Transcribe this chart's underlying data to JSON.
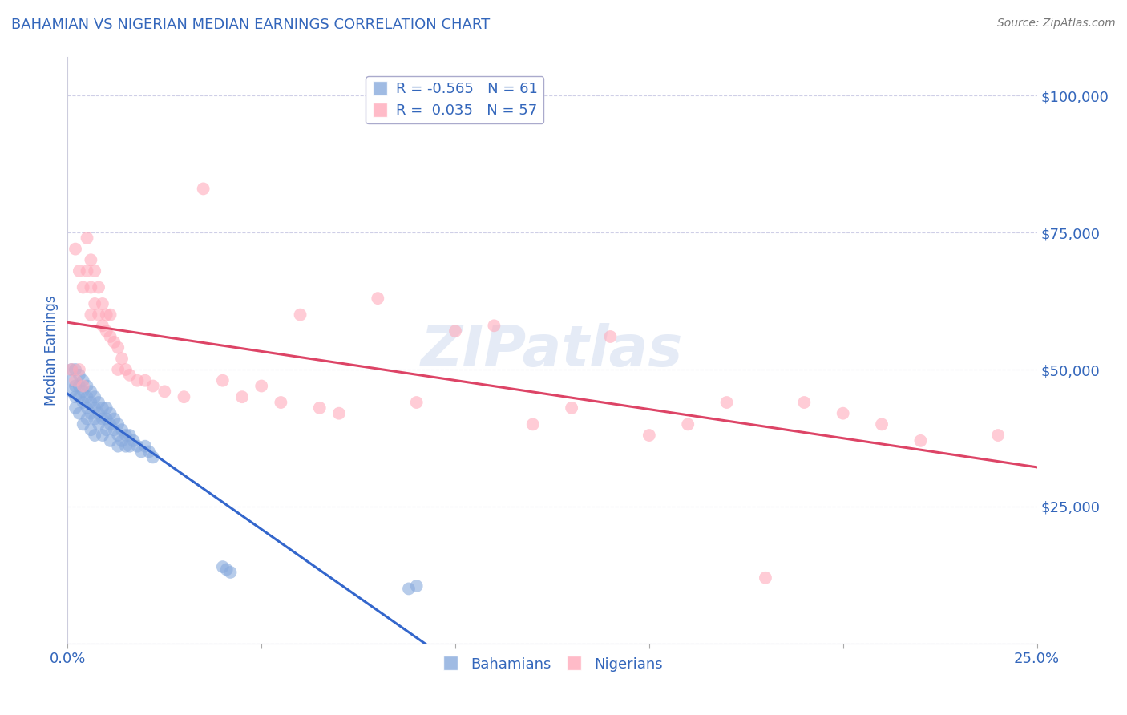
{
  "title": "BAHAMIAN VS NIGERIAN MEDIAN EARNINGS CORRELATION CHART",
  "source_text": "Source: ZipAtlas.com",
  "ylabel": "Median Earnings",
  "xmin": 0.0,
  "xmax": 0.25,
  "ymin": 0,
  "ymax": 107000,
  "yticks": [
    0,
    25000,
    50000,
    75000,
    100000
  ],
  "ytick_labels": [
    "",
    "$25,000",
    "$50,000",
    "$75,000",
    "$100,000"
  ],
  "xticks": [
    0.0,
    0.05,
    0.1,
    0.15,
    0.2,
    0.25
  ],
  "xtick_labels": [
    "0.0%",
    "",
    "",
    "",
    "",
    "25.0%"
  ],
  "legend_blue_r": "-0.565",
  "legend_blue_n": "61",
  "legend_pink_r": "0.035",
  "legend_pink_n": "57",
  "blue_color": "#88aadd",
  "pink_color": "#ffaabb",
  "blue_line_color": "#3366cc",
  "pink_line_color": "#dd4466",
  "watermark": "ZIPatlas",
  "label_blue": "Bahamians",
  "label_pink": "Nigerians",
  "title_color": "#3366bb",
  "tick_color": "#3366bb",
  "source_color": "#777777",
  "grid_color": "#bbbbdd",
  "blue_x": [
    0.001,
    0.001,
    0.001,
    0.002,
    0.002,
    0.002,
    0.002,
    0.003,
    0.003,
    0.003,
    0.003,
    0.004,
    0.004,
    0.004,
    0.004,
    0.005,
    0.005,
    0.005,
    0.005,
    0.006,
    0.006,
    0.006,
    0.006,
    0.007,
    0.007,
    0.007,
    0.007,
    0.008,
    0.008,
    0.008,
    0.009,
    0.009,
    0.009,
    0.01,
    0.01,
    0.01,
    0.011,
    0.011,
    0.011,
    0.012,
    0.012,
    0.013,
    0.013,
    0.013,
    0.014,
    0.014,
    0.015,
    0.015,
    0.016,
    0.016,
    0.017,
    0.018,
    0.019,
    0.02,
    0.021,
    0.022,
    0.04,
    0.041,
    0.042,
    0.088,
    0.09
  ],
  "blue_y": [
    50000,
    48000,
    46000,
    50000,
    47000,
    45000,
    43000,
    49000,
    47000,
    45000,
    42000,
    48000,
    46000,
    44000,
    40000,
    47000,
    45000,
    43000,
    41000,
    46000,
    44000,
    42000,
    39000,
    45000,
    43000,
    41000,
    38000,
    44000,
    42000,
    40000,
    43000,
    41000,
    38000,
    43000,
    41000,
    39000,
    42000,
    40000,
    37000,
    41000,
    39000,
    40000,
    38000,
    36000,
    39000,
    37000,
    38000,
    36000,
    38000,
    36000,
    37000,
    36000,
    35000,
    36000,
    35000,
    34000,
    14000,
    13500,
    13000,
    10000,
    10500
  ],
  "pink_x": [
    0.001,
    0.002,
    0.002,
    0.003,
    0.003,
    0.004,
    0.004,
    0.005,
    0.005,
    0.006,
    0.006,
    0.006,
    0.007,
    0.007,
    0.008,
    0.008,
    0.009,
    0.009,
    0.01,
    0.01,
    0.011,
    0.011,
    0.012,
    0.013,
    0.013,
    0.014,
    0.015,
    0.016,
    0.018,
    0.02,
    0.022,
    0.025,
    0.03,
    0.035,
    0.04,
    0.045,
    0.05,
    0.055,
    0.06,
    0.065,
    0.07,
    0.08,
    0.09,
    0.1,
    0.11,
    0.12,
    0.13,
    0.14,
    0.15,
    0.16,
    0.17,
    0.18,
    0.19,
    0.2,
    0.21,
    0.22,
    0.24
  ],
  "pink_y": [
    50000,
    72000,
    48000,
    68000,
    50000,
    65000,
    47000,
    74000,
    68000,
    70000,
    65000,
    60000,
    68000,
    62000,
    65000,
    60000,
    62000,
    58000,
    60000,
    57000,
    60000,
    56000,
    55000,
    54000,
    50000,
    52000,
    50000,
    49000,
    48000,
    48000,
    47000,
    46000,
    45000,
    83000,
    48000,
    45000,
    47000,
    44000,
    60000,
    43000,
    42000,
    63000,
    44000,
    57000,
    58000,
    40000,
    43000,
    56000,
    38000,
    40000,
    44000,
    12000,
    44000,
    42000,
    40000,
    37000,
    38000
  ]
}
